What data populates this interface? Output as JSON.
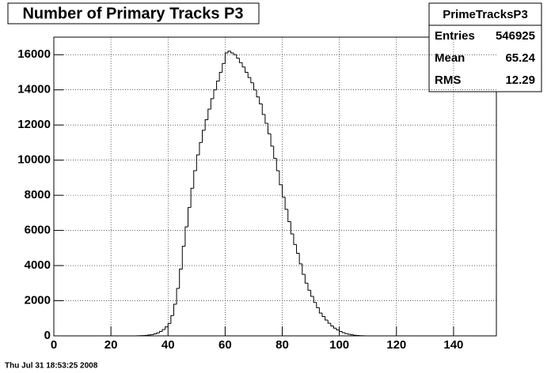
{
  "chart_data": {
    "type": "histogram",
    "title": "Number of Primary Tracks P3",
    "bins": [
      28,
      29,
      30,
      31,
      32,
      33,
      34,
      35,
      36,
      37,
      38,
      39,
      40,
      41,
      42,
      43,
      44,
      45,
      46,
      47,
      48,
      49,
      50,
      51,
      52,
      53,
      54,
      55,
      56,
      57,
      58,
      59,
      60,
      61,
      62,
      63,
      64,
      65,
      66,
      67,
      68,
      69,
      70,
      71,
      72,
      73,
      74,
      75,
      76,
      77,
      78,
      79,
      80,
      81,
      82,
      83,
      84,
      85,
      86,
      87,
      88,
      89,
      90,
      91,
      92,
      93,
      94,
      95,
      96,
      97,
      98,
      99,
      100,
      101,
      102,
      103,
      104,
      105,
      106,
      107,
      108,
      109,
      110
    ],
    "values": [
      2,
      5,
      10,
      18,
      30,
      50,
      75,
      110,
      170,
      250,
      360,
      510,
      700,
      1150,
      1800,
      2700,
      3800,
      5100,
      6200,
      7300,
      8400,
      9400,
      10300,
      11000,
      11700,
      12300,
      12900,
      13500,
      14000,
      14500,
      15000,
      15500,
      16100,
      16200,
      16100,
      16000,
      15800,
      15550,
      15300,
      15000,
      14700,
      14400,
      14000,
      13600,
      13200,
      12600,
      12100,
      11500,
      10800,
      10100,
      9400,
      8600,
      7900,
      7200,
      6500,
      5800,
      5200,
      4700,
      4100,
      3500,
      3000,
      2600,
      2250,
      1900,
      1600,
      1300,
      1100,
      900,
      720,
      560,
      440,
      340,
      250,
      180,
      130,
      90,
      60,
      35,
      20,
      10,
      5,
      2
    ],
    "color": "#000000",
    "xlim": [
      0,
      155
    ],
    "xticks": [
      0,
      20,
      40,
      60,
      80,
      100,
      120,
      140
    ],
    "ylim": [
      0,
      17000
    ],
    "yticks": [
      0,
      2000,
      4000,
      6000,
      8000,
      10000,
      12000,
      14000,
      16000
    ],
    "grid": true,
    "stats": {
      "name": "PrimeTracksP3",
      "rows": [
        {
          "label": "Entries",
          "value": 546925
        },
        {
          "label": "Mean",
          "value": 65.24
        },
        {
          "label": "RMS",
          "value": 12.29
        }
      ]
    },
    "timestamp": "Thu Jul 31 18:53:25 2008"
  }
}
